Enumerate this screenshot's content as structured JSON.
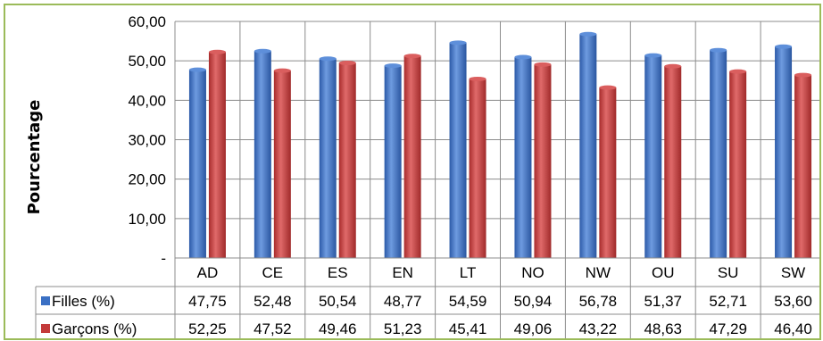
{
  "chart_data": {
    "type": "bar",
    "title": "",
    "xlabel": "",
    "ylabel": "Pourcentage",
    "ylim": [
      0,
      60
    ],
    "yticks": [
      "-",
      "10,00",
      "20,00",
      "30,00",
      "40,00",
      "50,00",
      "60,00"
    ],
    "grid": true,
    "categories": [
      "AD",
      "CE",
      "ES",
      "EN",
      "LT",
      "NO",
      "NW",
      "OU",
      "SU",
      "SW"
    ],
    "series": [
      {
        "name": "Filles (%)",
        "color": "#3A70C4",
        "values": [
          47.75,
          52.48,
          50.54,
          48.77,
          54.59,
          50.94,
          56.78,
          51.37,
          52.71,
          53.6
        ],
        "labels": [
          "47,75",
          "52,48",
          "50,54",
          "48,77",
          "54,59",
          "50,94",
          "56,78",
          "51,37",
          "52,71",
          "53,60"
        ]
      },
      {
        "name": "Garçons (%)",
        "color": "#C43A3A",
        "values": [
          52.25,
          47.52,
          49.46,
          51.23,
          45.41,
          49.06,
          43.22,
          48.63,
          47.29,
          46.4
        ],
        "labels": [
          "52,25",
          "47,52",
          "49,46",
          "51,23",
          "45,41",
          "49,06",
          "43,22",
          "48,63",
          "47,29",
          "46,40"
        ]
      }
    ],
    "legend": "data-table"
  }
}
